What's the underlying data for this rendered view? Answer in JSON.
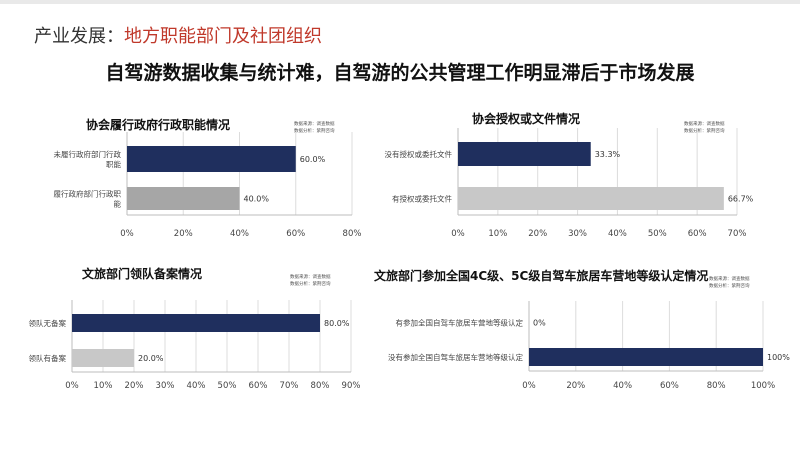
{
  "header": {
    "prefix": "产业发展：",
    "highlight": "地方职能部门及社团组织",
    "subtitle": "自驾游数据收集与统计难，自驾游的公共管理工作明显滞后于市场发展"
  },
  "colors": {
    "navy": "#1f2f5e",
    "gray": "#a6a6a6",
    "light_gray": "#c8c8c8",
    "accent_red": "#c0392b"
  },
  "chart_data": [
    {
      "type": "bar",
      "orientation": "horizontal",
      "title": "协会履行政府行政职能情况",
      "legend": [
        "数据来源：调查数据",
        "数据分析：紫荆咨询"
      ],
      "categories": [
        "未履行政府部门行政职能",
        "履行政府部门行政职能"
      ],
      "values": [
        60,
        40
      ],
      "value_labels": [
        "60.0%",
        "40.0%"
      ],
      "bar_colors": [
        "#1f2f5e",
        "#a6a6a6"
      ],
      "xlim": [
        0,
        80
      ],
      "ticks": [
        "0%",
        "20%",
        "40%",
        "60%",
        "80%"
      ]
    },
    {
      "type": "bar",
      "orientation": "horizontal",
      "title": "协会授权或文件情况",
      "legend": [
        "数据来源：调查数据",
        "数据分析：紫荆咨询"
      ],
      "categories": [
        "没有授权或委托文件",
        "有授权或委托文件"
      ],
      "values": [
        33.3,
        66.7
      ],
      "value_labels": [
        "33.3%",
        "66.7%"
      ],
      "bar_colors": [
        "#1f2f5e",
        "#c8c8c8"
      ],
      "xlim": [
        0,
        70
      ],
      "ticks": [
        "0%",
        "10%",
        "20%",
        "30%",
        "40%",
        "50%",
        "60%",
        "70%"
      ]
    },
    {
      "type": "bar",
      "orientation": "horizontal",
      "title": "文旅部门领队备案情况",
      "legend": [
        "数据来源：调查数据",
        "数据分析：紫荆咨询"
      ],
      "categories": [
        "领队无备案",
        "领队有备案"
      ],
      "values": [
        80,
        20
      ],
      "value_labels": [
        "80.0%",
        "20.0%"
      ],
      "bar_colors": [
        "#1f2f5e",
        "#c8c8c8"
      ],
      "xlim": [
        0,
        90
      ],
      "ticks": [
        "0%",
        "10%",
        "20%",
        "30%",
        "40%",
        "50%",
        "60%",
        "70%",
        "80%",
        "90%"
      ]
    },
    {
      "type": "bar",
      "orientation": "horizontal",
      "title": "文旅部门参加全国4C级、5C级自驾车旅居车营地等级认定情况",
      "legend": [
        "数据来源：调查数据",
        "数据分析：紫荆咨询"
      ],
      "categories": [
        "有参加全国自驾车旅居车营地等级认定",
        "没有参加全国自驾车旅居车营地等级认定"
      ],
      "values": [
        0,
        100
      ],
      "value_labels": [
        "0%",
        "100%"
      ],
      "bar_colors": [
        "#1f2f5e",
        "#1f2f5e"
      ],
      "xlim": [
        0,
        100
      ],
      "ticks": [
        "0%",
        "20%",
        "40%",
        "60%",
        "80%",
        "100%"
      ]
    }
  ]
}
